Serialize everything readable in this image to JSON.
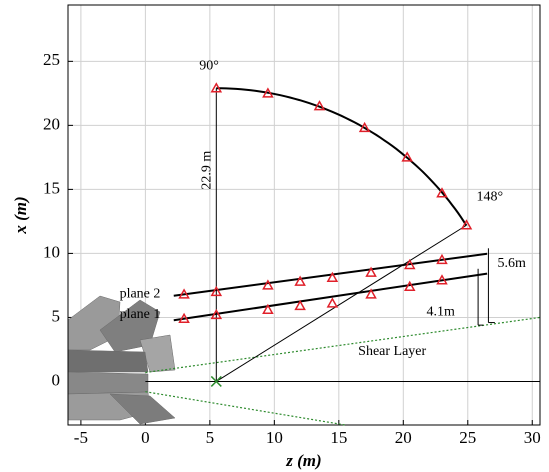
{
  "chart_data": {
    "type": "scatter",
    "xlabel": "z (m)",
    "ylabel": "x (m)",
    "xlim": [
      -6,
      30.6
    ],
    "ylim": [
      -3.4,
      29.4
    ],
    "xticks": [
      -5,
      0,
      5,
      10,
      15,
      20,
      25,
      30
    ],
    "yticks": [
      0,
      5,
      10,
      15,
      20,
      25
    ],
    "grid": true,
    "series": [
      {
        "color": "#e0202a",
        "marker": "triangle",
        "x": [
          5.5,
          9.5,
          13.5,
          17,
          20.3,
          23,
          24.9
        ],
        "y": [
          22.9,
          22.5,
          21.5,
          19.8,
          17.5,
          14.7,
          12.2
        ]
      },
      {
        "name": "plane 2",
        "color": "#e0202a",
        "marker": "triangle",
        "x": [
          3,
          5.5,
          9.5,
          12,
          14.5,
          17.5,
          20.5,
          23
        ],
        "y": [
          6.8,
          7.0,
          7.5,
          7.8,
          8.1,
          8.5,
          9.1,
          9.5
        ]
      },
      {
        "name": "plane 1",
        "color": "#e0202a",
        "marker": "triangle",
        "x": [
          3,
          5.5,
          9.5,
          12,
          14.5,
          17.5,
          20.5,
          23
        ],
        "y": [
          4.9,
          5.2,
          5.6,
          5.9,
          6.1,
          6.8,
          7.4,
          7.9
        ]
      },
      {
        "color": "#2e8b2e",
        "marker": "x",
        "x": [
          5.5
        ],
        "y": [
          0
        ]
      }
    ],
    "annotations": [
      "90°",
      "148°",
      "22.9 m",
      "5.6m",
      "4.1m",
      "Shear Layer"
    ]
  }
}
